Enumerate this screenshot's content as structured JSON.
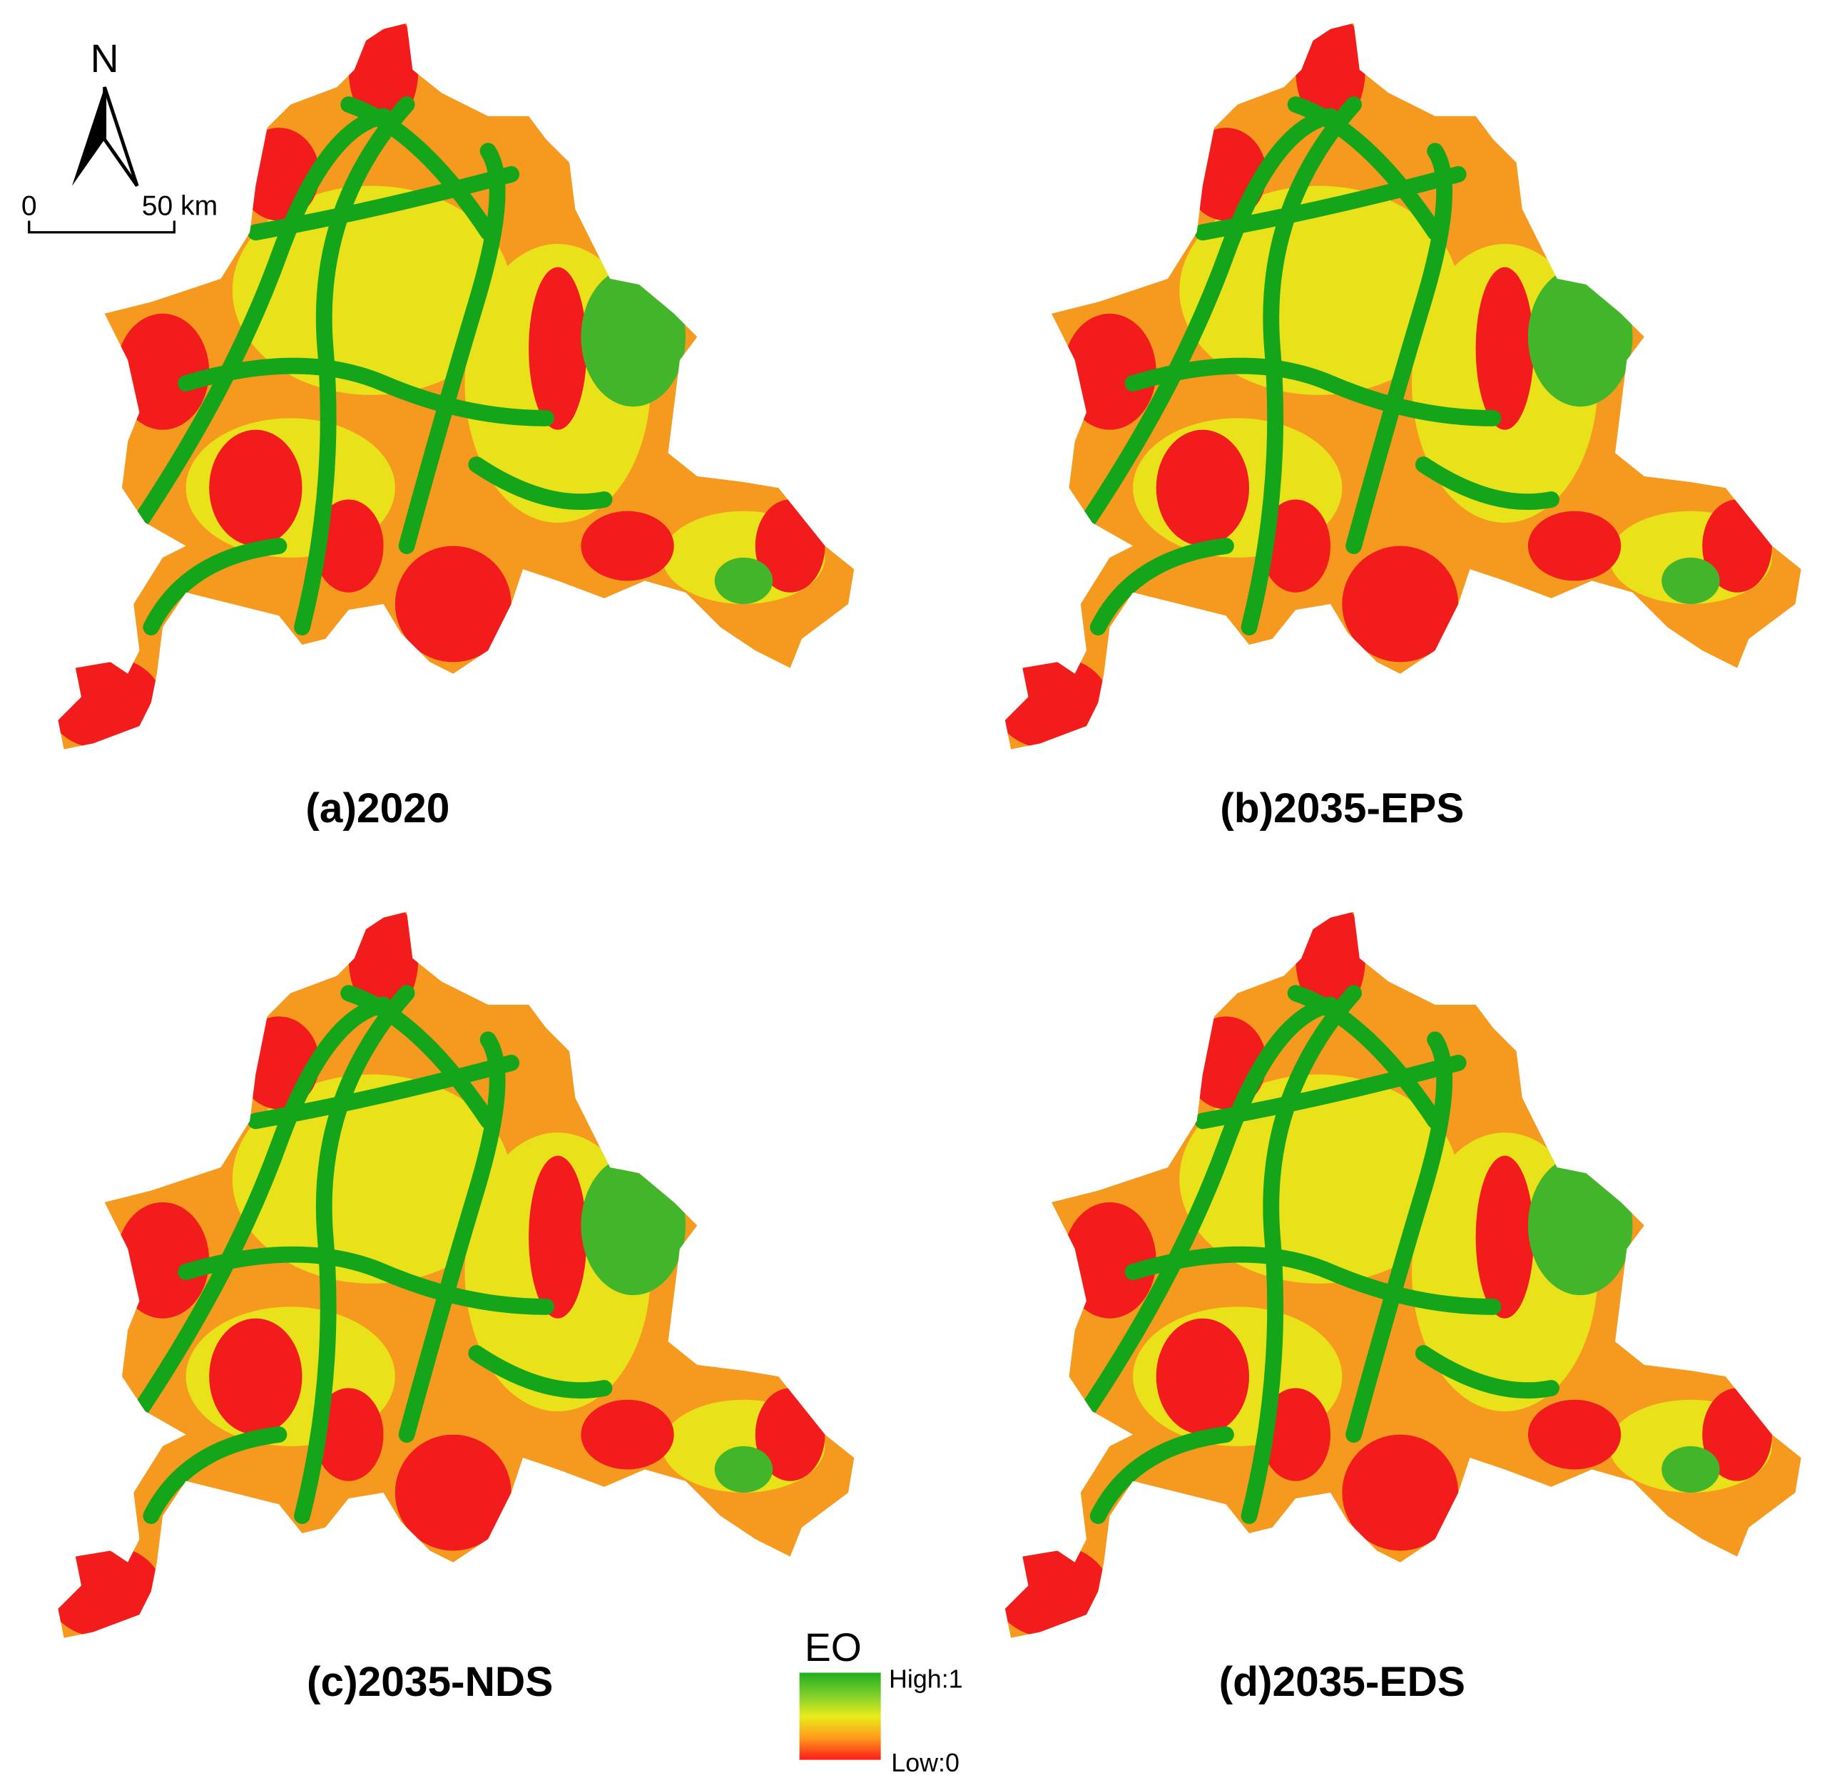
{
  "north_arrow": {
    "label": "N"
  },
  "scale_bar": {
    "labels": [
      "0",
      "50 km"
    ]
  },
  "panels": [
    {
      "label": "(a)2020"
    },
    {
      "label": "(b)2035-EPS"
    },
    {
      "label": "(c)2035-NDS"
    },
    {
      "label": "(d)2035-EDS"
    }
  ],
  "legend": {
    "title": "EO",
    "high": "High:1",
    "low": "Low:0"
  }
}
